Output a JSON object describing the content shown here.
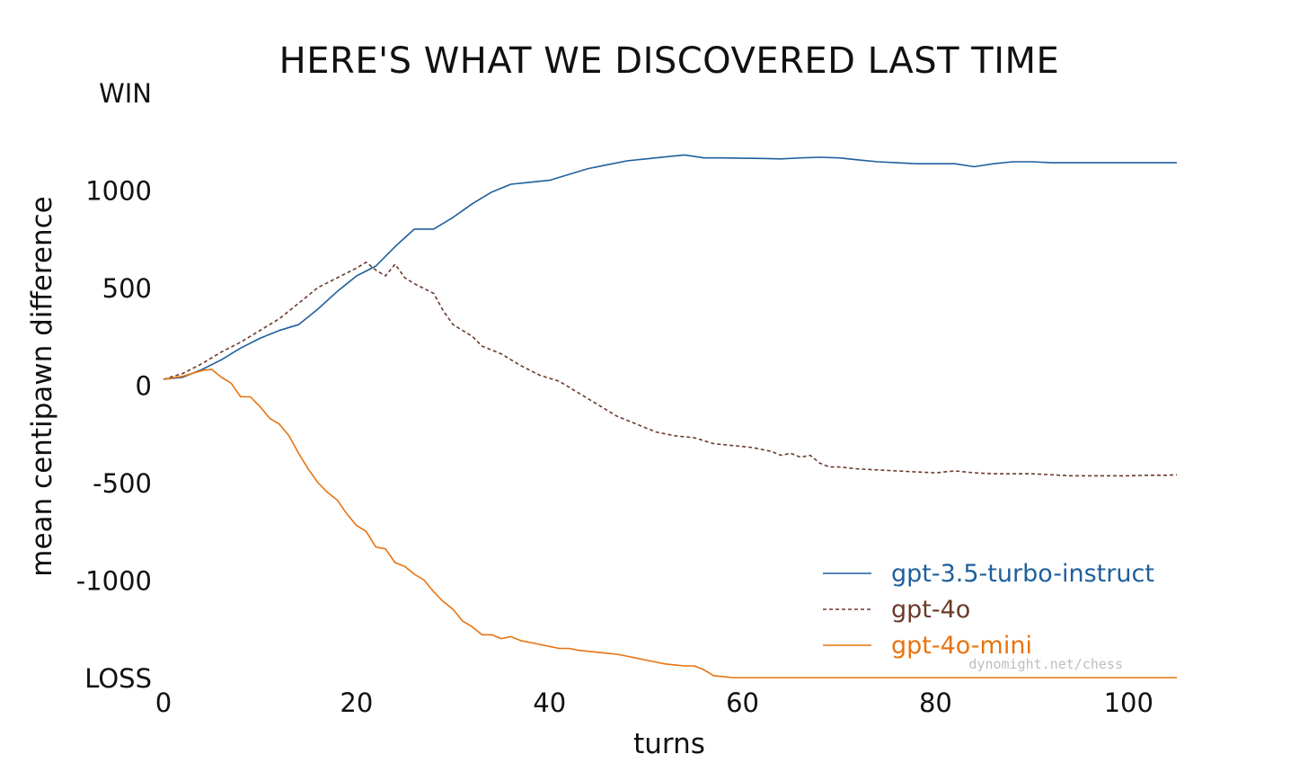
{
  "chart_data": {
    "type": "line",
    "title": "HERE'S WHAT WE DISCOVERED LAST TIME",
    "xlabel": "turns",
    "ylabel": "mean centipawn difference",
    "xlim": [
      0,
      105
    ],
    "ylim": [
      -1500,
      1500
    ],
    "xticks": [
      0,
      20,
      40,
      60,
      80,
      100
    ],
    "yticks": [
      {
        "value": 1500,
        "label": "WIN"
      },
      {
        "value": 1000,
        "label": "1000"
      },
      {
        "value": 500,
        "label": "500"
      },
      {
        "value": 0,
        "label": "0"
      },
      {
        "value": -500,
        "label": "-500"
      },
      {
        "value": -1000,
        "label": "-1000"
      },
      {
        "value": -1500,
        "label": "LOSS"
      }
    ],
    "grid": false,
    "legend_position": "bottom-right",
    "watermark": "dynomight.net/chess",
    "series": [
      {
        "name": "gpt-3.5-turbo-instruct",
        "color": "#1f5f9c",
        "dash": "solid",
        "points": [
          [
            0,
            30
          ],
          [
            2,
            40
          ],
          [
            4,
            80
          ],
          [
            6,
            130
          ],
          [
            8,
            190
          ],
          [
            10,
            240
          ],
          [
            12,
            280
          ],
          [
            14,
            310
          ],
          [
            16,
            390
          ],
          [
            18,
            480
          ],
          [
            20,
            560
          ],
          [
            22,
            610
          ],
          [
            24,
            710
          ],
          [
            26,
            800
          ],
          [
            28,
            800
          ],
          [
            30,
            860
          ],
          [
            32,
            930
          ],
          [
            34,
            990
          ],
          [
            36,
            1030
          ],
          [
            38,
            1040
          ],
          [
            40,
            1050
          ],
          [
            42,
            1080
          ],
          [
            44,
            1110
          ],
          [
            46,
            1130
          ],
          [
            48,
            1150
          ],
          [
            50,
            1160
          ],
          [
            52,
            1170
          ],
          [
            54,
            1180
          ],
          [
            56,
            1165
          ],
          [
            58,
            1165
          ],
          [
            60,
            1163
          ],
          [
            62,
            1162
          ],
          [
            64,
            1160
          ],
          [
            66,
            1165
          ],
          [
            68,
            1168
          ],
          [
            70,
            1165
          ],
          [
            72,
            1155
          ],
          [
            74,
            1145
          ],
          [
            76,
            1140
          ],
          [
            78,
            1135
          ],
          [
            80,
            1135
          ],
          [
            82,
            1135
          ],
          [
            84,
            1120
          ],
          [
            86,
            1135
          ],
          [
            88,
            1145
          ],
          [
            90,
            1145
          ],
          [
            92,
            1140
          ],
          [
            94,
            1140
          ],
          [
            96,
            1140
          ],
          [
            98,
            1140
          ],
          [
            100,
            1140
          ],
          [
            102,
            1140
          ],
          [
            104,
            1140
          ],
          [
            105,
            1140
          ]
        ]
      },
      {
        "name": "gpt-4o",
        "color": "#6b3a2a",
        "dash": "dashed",
        "points": [
          [
            0,
            30
          ],
          [
            2,
            60
          ],
          [
            4,
            110
          ],
          [
            6,
            170
          ],
          [
            8,
            220
          ],
          [
            10,
            280
          ],
          [
            12,
            340
          ],
          [
            14,
            420
          ],
          [
            16,
            500
          ],
          [
            18,
            550
          ],
          [
            20,
            600
          ],
          [
            21,
            630
          ],
          [
            22,
            590
          ],
          [
            23,
            560
          ],
          [
            24,
            620
          ],
          [
            25,
            550
          ],
          [
            26,
            520
          ],
          [
            28,
            470
          ],
          [
            29,
            380
          ],
          [
            30,
            310
          ],
          [
            32,
            250
          ],
          [
            33,
            200
          ],
          [
            35,
            160
          ],
          [
            37,
            100
          ],
          [
            39,
            50
          ],
          [
            41,
            20
          ],
          [
            43,
            -40
          ],
          [
            45,
            -100
          ],
          [
            47,
            -160
          ],
          [
            49,
            -200
          ],
          [
            51,
            -240
          ],
          [
            53,
            -260
          ],
          [
            55,
            -270
          ],
          [
            57,
            -300
          ],
          [
            59,
            -310
          ],
          [
            61,
            -320
          ],
          [
            63,
            -340
          ],
          [
            64,
            -360
          ],
          [
            65,
            -350
          ],
          [
            66,
            -370
          ],
          [
            67,
            -360
          ],
          [
            68,
            -400
          ],
          [
            69,
            -420
          ],
          [
            70,
            -420
          ],
          [
            72,
            -430
          ],
          [
            74,
            -435
          ],
          [
            76,
            -440
          ],
          [
            78,
            -445
          ],
          [
            80,
            -450
          ],
          [
            82,
            -440
          ],
          [
            84,
            -450
          ],
          [
            86,
            -455
          ],
          [
            88,
            -455
          ],
          [
            90,
            -455
          ],
          [
            92,
            -460
          ],
          [
            94,
            -465
          ],
          [
            96,
            -465
          ],
          [
            98,
            -465
          ],
          [
            100,
            -465
          ],
          [
            102,
            -462
          ],
          [
            104,
            -462
          ],
          [
            105,
            -460
          ]
        ]
      },
      {
        "name": "gpt-4o-mini",
        "color": "#e8730e",
        "dash": "solid",
        "points": [
          [
            0,
            30
          ],
          [
            2,
            45
          ],
          [
            4,
            75
          ],
          [
            5,
            80
          ],
          [
            6,
            40
          ],
          [
            7,
            10
          ],
          [
            8,
            -60
          ],
          [
            9,
            -60
          ],
          [
            10,
            -110
          ],
          [
            11,
            -170
          ],
          [
            12,
            -200
          ],
          [
            13,
            -260
          ],
          [
            14,
            -350
          ],
          [
            15,
            -430
          ],
          [
            16,
            -500
          ],
          [
            17,
            -550
          ],
          [
            18,
            -590
          ],
          [
            19,
            -660
          ],
          [
            20,
            -720
          ],
          [
            21,
            -750
          ],
          [
            22,
            -830
          ],
          [
            23,
            -840
          ],
          [
            24,
            -910
          ],
          [
            25,
            -930
          ],
          [
            26,
            -970
          ],
          [
            27,
            -1000
          ],
          [
            28,
            -1060
          ],
          [
            29,
            -1110
          ],
          [
            30,
            -1150
          ],
          [
            31,
            -1210
          ],
          [
            32,
            -1240
          ],
          [
            33,
            -1280
          ],
          [
            34,
            -1280
          ],
          [
            35,
            -1300
          ],
          [
            36,
            -1290
          ],
          [
            37,
            -1310
          ],
          [
            38,
            -1320
          ],
          [
            39,
            -1330
          ],
          [
            40,
            -1340
          ],
          [
            41,
            -1350
          ],
          [
            42,
            -1350
          ],
          [
            43,
            -1360
          ],
          [
            44,
            -1365
          ],
          [
            45,
            -1370
          ],
          [
            46,
            -1375
          ],
          [
            47,
            -1380
          ],
          [
            48,
            -1390
          ],
          [
            49,
            -1400
          ],
          [
            50,
            -1410
          ],
          [
            51,
            -1420
          ],
          [
            52,
            -1430
          ],
          [
            53,
            -1435
          ],
          [
            54,
            -1440
          ],
          [
            55,
            -1440
          ],
          [
            56,
            -1460
          ],
          [
            57,
            -1490
          ],
          [
            58,
            -1495
          ],
          [
            59,
            -1500
          ],
          [
            60,
            -1500
          ],
          [
            70,
            -1500
          ],
          [
            80,
            -1500
          ],
          [
            90,
            -1500
          ],
          [
            100,
            -1500
          ],
          [
            105,
            -1500
          ]
        ]
      }
    ]
  }
}
